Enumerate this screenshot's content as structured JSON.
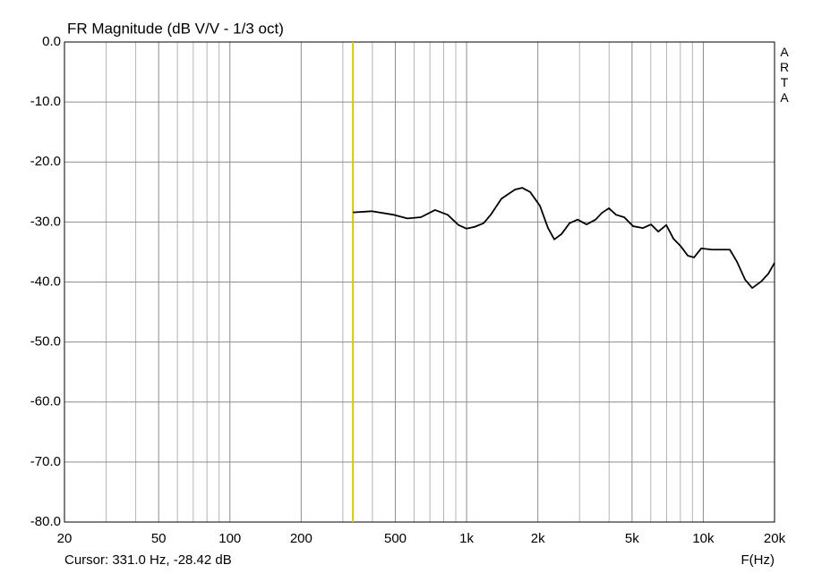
{
  "chart_data": {
    "type": "line",
    "title": "FR Magnitude (dB V/V - 1/3 oct)",
    "x_label": "F(Hz)",
    "cursor_text": "Cursor: 331.0 Hz, -28.42 dB",
    "cursor_x": 331.0,
    "cursor_color": "#d4c800",
    "watermark": "ARTA",
    "x_log": true,
    "grid": true,
    "xlim": [
      20,
      20000
    ],
    "ylim": [
      -80,
      0
    ],
    "xticks": [
      20,
      50,
      100,
      200,
      500,
      {
        "value": 1000,
        "label": "1k"
      },
      {
        "value": 2000,
        "label": "2k"
      },
      {
        "value": 5000,
        "label": "5k"
      },
      {
        "value": 10000,
        "label": "10k"
      },
      {
        "value": 20000,
        "label": "20k"
      }
    ],
    "x_minor_ticks": [
      30,
      40,
      60,
      70,
      80,
      90,
      300,
      400,
      600,
      700,
      800,
      900,
      3000,
      4000,
      6000,
      7000,
      8000,
      9000
    ],
    "yticks": [
      {
        "value": 0,
        "label": "0.0"
      },
      {
        "value": -10,
        "label": "-10.0"
      },
      {
        "value": -20,
        "label": "-20.0"
      },
      {
        "value": -30,
        "label": "-30.0"
      },
      {
        "value": -40,
        "label": "-40.0"
      },
      {
        "value": -50,
        "label": "-50.0"
      },
      {
        "value": -60,
        "label": "-60.0"
      },
      {
        "value": -70,
        "label": "-70.0"
      },
      {
        "value": -80,
        "label": "-80.0"
      }
    ],
    "x": [
      331,
      397,
      493,
      562,
      641,
      736,
      832,
      924,
      1000,
      1082,
      1180,
      1264,
      1404,
      1600,
      1716,
      1856,
      2041,
      2208,
      2348,
      2518,
      2722,
      2944,
      3213,
      3507,
      3724,
      3991,
      4283,
      4632,
      5054,
      5560,
      6016,
      6454,
      6980,
      7485,
      8018,
      8600,
      9144,
      9800,
      10880,
      12944,
      13870,
      15020,
      16100,
      17580,
      18840,
      20000
    ],
    "series": [
      {
        "color": "#000000",
        "values": [
          -28.4,
          -28.2,
          -28.8,
          -29.4,
          -29.2,
          -28.0,
          -28.8,
          -30.5,
          -31.1,
          -30.8,
          -30.2,
          -28.8,
          -26.1,
          -24.6,
          -24.3,
          -25.0,
          -27.3,
          -31.0,
          -32.9,
          -32.0,
          -30.2,
          -29.6,
          -30.4,
          -29.6,
          -28.5,
          -27.7,
          -28.8,
          -29.2,
          -30.7,
          -31.0,
          -30.4,
          -31.6,
          -30.5,
          -32.8,
          -34.0,
          -35.6,
          -35.9,
          -34.4,
          -34.6,
          -34.6,
          -36.6,
          -39.6,
          -41.0,
          -39.9,
          -38.6,
          -36.8
        ]
      }
    ]
  }
}
